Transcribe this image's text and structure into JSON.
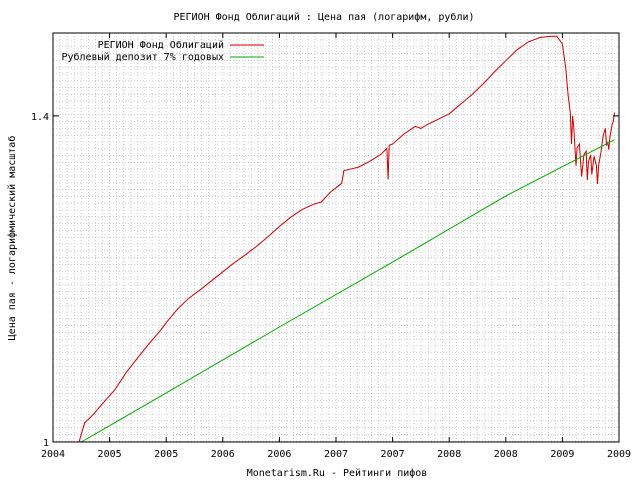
{
  "chart_data": {
    "type": "line",
    "title": "РЕГИОН Фонд Облигаций : Цена пая (логарифм, рубли)",
    "xlabel": "Monetarism.Ru - Рейтинги пифов",
    "ylabel": "Цена пая - логарифмический масштаб",
    "y_scale": "log",
    "grid": true,
    "legend_position": "top-left",
    "xlim": [
      2004.0,
      2009.0
    ],
    "ylim": [
      1.0,
      1.525
    ],
    "x_tick_labels": [
      "2004",
      "2005",
      "2005",
      "2006",
      "2006",
      "2007",
      "2007",
      "2008",
      "2008",
      "2009",
      "2009"
    ],
    "y_ticks": [
      1.0,
      1.4
    ],
    "y_tick_labels": [
      "1",
      "1.4"
    ],
    "series": [
      {
        "name": "РЕГИОН Фонд Облигаций",
        "color": "#cc0000",
        "points": [
          [
            2004.23,
            1.0
          ],
          [
            2004.28,
            1.02
          ],
          [
            2004.35,
            1.028
          ],
          [
            2004.45,
            1.042
          ],
          [
            2004.55,
            1.056
          ],
          [
            2004.65,
            1.075
          ],
          [
            2004.75,
            1.091
          ],
          [
            2004.85,
            1.107
          ],
          [
            2004.95,
            1.122
          ],
          [
            2005.0,
            1.131
          ],
          [
            2005.1,
            1.147
          ],
          [
            2005.2,
            1.16
          ],
          [
            2005.3,
            1.17
          ],
          [
            2005.4,
            1.181
          ],
          [
            2005.5,
            1.192
          ],
          [
            2005.6,
            1.203
          ],
          [
            2005.7,
            1.213
          ],
          [
            2005.8,
            1.224
          ],
          [
            2005.9,
            1.236
          ],
          [
            2006.0,
            1.249
          ],
          [
            2006.1,
            1.261
          ],
          [
            2006.2,
            1.271
          ],
          [
            2006.3,
            1.278
          ],
          [
            2006.37,
            1.281
          ],
          [
            2006.45,
            1.294
          ],
          [
            2006.55,
            1.306
          ],
          [
            2006.57,
            1.323
          ],
          [
            2006.62,
            1.325
          ],
          [
            2006.7,
            1.328
          ],
          [
            2006.8,
            1.336
          ],
          [
            2006.9,
            1.346
          ],
          [
            2006.95,
            1.354
          ],
          [
            2006.96,
            1.311
          ],
          [
            2006.97,
            1.358
          ],
          [
            2007.0,
            1.36
          ],
          [
            2007.1,
            1.374
          ],
          [
            2007.2,
            1.385
          ],
          [
            2007.25,
            1.382
          ],
          [
            2007.3,
            1.387
          ],
          [
            2007.4,
            1.395
          ],
          [
            2007.5,
            1.403
          ],
          [
            2007.6,
            1.417
          ],
          [
            2007.7,
            1.431
          ],
          [
            2007.8,
            1.447
          ],
          [
            2007.9,
            1.465
          ],
          [
            2008.0,
            1.482
          ],
          [
            2008.1,
            1.499
          ],
          [
            2008.2,
            1.511
          ],
          [
            2008.3,
            1.518
          ],
          [
            2008.4,
            1.52
          ],
          [
            2008.45,
            1.52
          ],
          [
            2008.5,
            1.508
          ],
          [
            2008.53,
            1.47
          ],
          [
            2008.55,
            1.43
          ],
          [
            2008.57,
            1.405
          ],
          [
            2008.58,
            1.36
          ],
          [
            2008.59,
            1.4
          ],
          [
            2008.6,
            1.385
          ],
          [
            2008.62,
            1.33
          ],
          [
            2008.63,
            1.355
          ],
          [
            2008.65,
            1.36
          ],
          [
            2008.67,
            1.315
          ],
          [
            2008.69,
            1.345
          ],
          [
            2008.71,
            1.35
          ],
          [
            2008.72,
            1.31
          ],
          [
            2008.73,
            1.335
          ],
          [
            2008.75,
            1.345
          ],
          [
            2008.76,
            1.318
          ],
          [
            2008.78,
            1.343
          ],
          [
            2008.8,
            1.33
          ],
          [
            2008.81,
            1.305
          ],
          [
            2008.82,
            1.33
          ],
          [
            2008.84,
            1.348
          ],
          [
            2008.86,
            1.372
          ],
          [
            2008.88,
            1.382
          ],
          [
            2008.89,
            1.359
          ],
          [
            2008.9,
            1.362
          ],
          [
            2008.91,
            1.352
          ],
          [
            2008.92,
            1.37
          ],
          [
            2008.94,
            1.388
          ],
          [
            2008.95,
            1.392
          ],
          [
            2008.96,
            1.405
          ]
        ]
      },
      {
        "name": "Рублевый депозит 7% годовых",
        "color": "#00aa00",
        "points": [
          [
            2004.25,
            1.0
          ],
          [
            2005.0,
            1.052
          ],
          [
            2006.0,
            1.126
          ],
          [
            2007.0,
            1.204
          ],
          [
            2008.0,
            1.289
          ],
          [
            2008.96,
            1.366
          ]
        ]
      }
    ]
  }
}
